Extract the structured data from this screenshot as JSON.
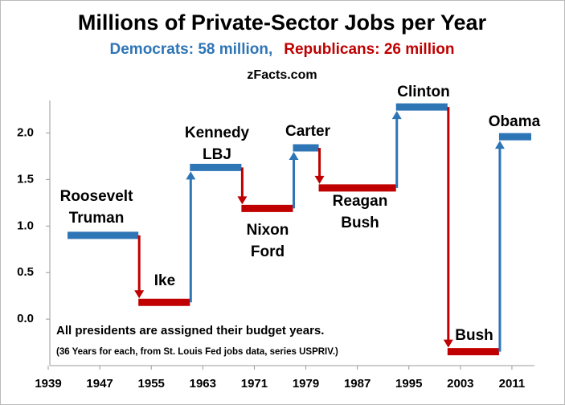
{
  "chart_data": {
    "type": "step",
    "title": "Millions of Private-Sector Jobs per Year",
    "subtitle": [
      {
        "text": "Democrats: 58 million,",
        "color": "#2e75b6"
      },
      {
        "text": "Republicans: 26 million",
        "color": "#c00000"
      }
    ],
    "source": "zFacts.com",
    "notes": [
      "All presidents are assigned their budget years.",
      "(36 Years for each, from St. Louis Fed jobs data, series USPRIV.)"
    ],
    "segments": [
      {
        "label": [
          "Roosevelt",
          "Truman"
        ],
        "start": 1942,
        "end": 1953,
        "value": 0.9,
        "color": "#2e75b6"
      },
      {
        "label": [
          "Ike"
        ],
        "start": 1953,
        "end": 1961,
        "value": 0.18,
        "color": "#c00000"
      },
      {
        "label": [
          "Kennedy",
          "LBJ"
        ],
        "start": 1961,
        "end": 1969,
        "value": 1.63,
        "color": "#2e75b6"
      },
      {
        "label": [
          "Nixon",
          "Ford"
        ],
        "start": 1969,
        "end": 1977,
        "value": 1.19,
        "color": "#c00000"
      },
      {
        "label": [
          "Carter"
        ],
        "start": 1977,
        "end": 1981,
        "value": 1.84,
        "color": "#2e75b6"
      },
      {
        "label": [
          "Reagan",
          "Bush"
        ],
        "start": 1981,
        "end": 1993,
        "value": 1.41,
        "color": "#c00000"
      },
      {
        "label": [
          "Clinton"
        ],
        "start": 1993,
        "end": 2001,
        "value": 2.28,
        "color": "#2e75b6"
      },
      {
        "label": [
          "Bush"
        ],
        "start": 2001,
        "end": 2009,
        "value": -0.35,
        "color": "#c00000"
      },
      {
        "label": [
          "Obama"
        ],
        "start": 2009,
        "end": 2014,
        "value": 1.96,
        "color": "#2e75b6"
      }
    ],
    "xlim": [
      1939,
      2014
    ],
    "xticks": [
      1939,
      1947,
      1955,
      1963,
      1971,
      1979,
      1987,
      1995,
      2003,
      2011
    ],
    "ylim": [
      -0.5,
      2.35
    ],
    "yticks": [
      {
        "value": 0,
        "label": "0.0"
      },
      0.5,
      {
        "value": 1,
        "label": "1.0"
      },
      1.5,
      {
        "value": 2,
        "label": "2.0"
      }
    ],
    "grid": false
  }
}
